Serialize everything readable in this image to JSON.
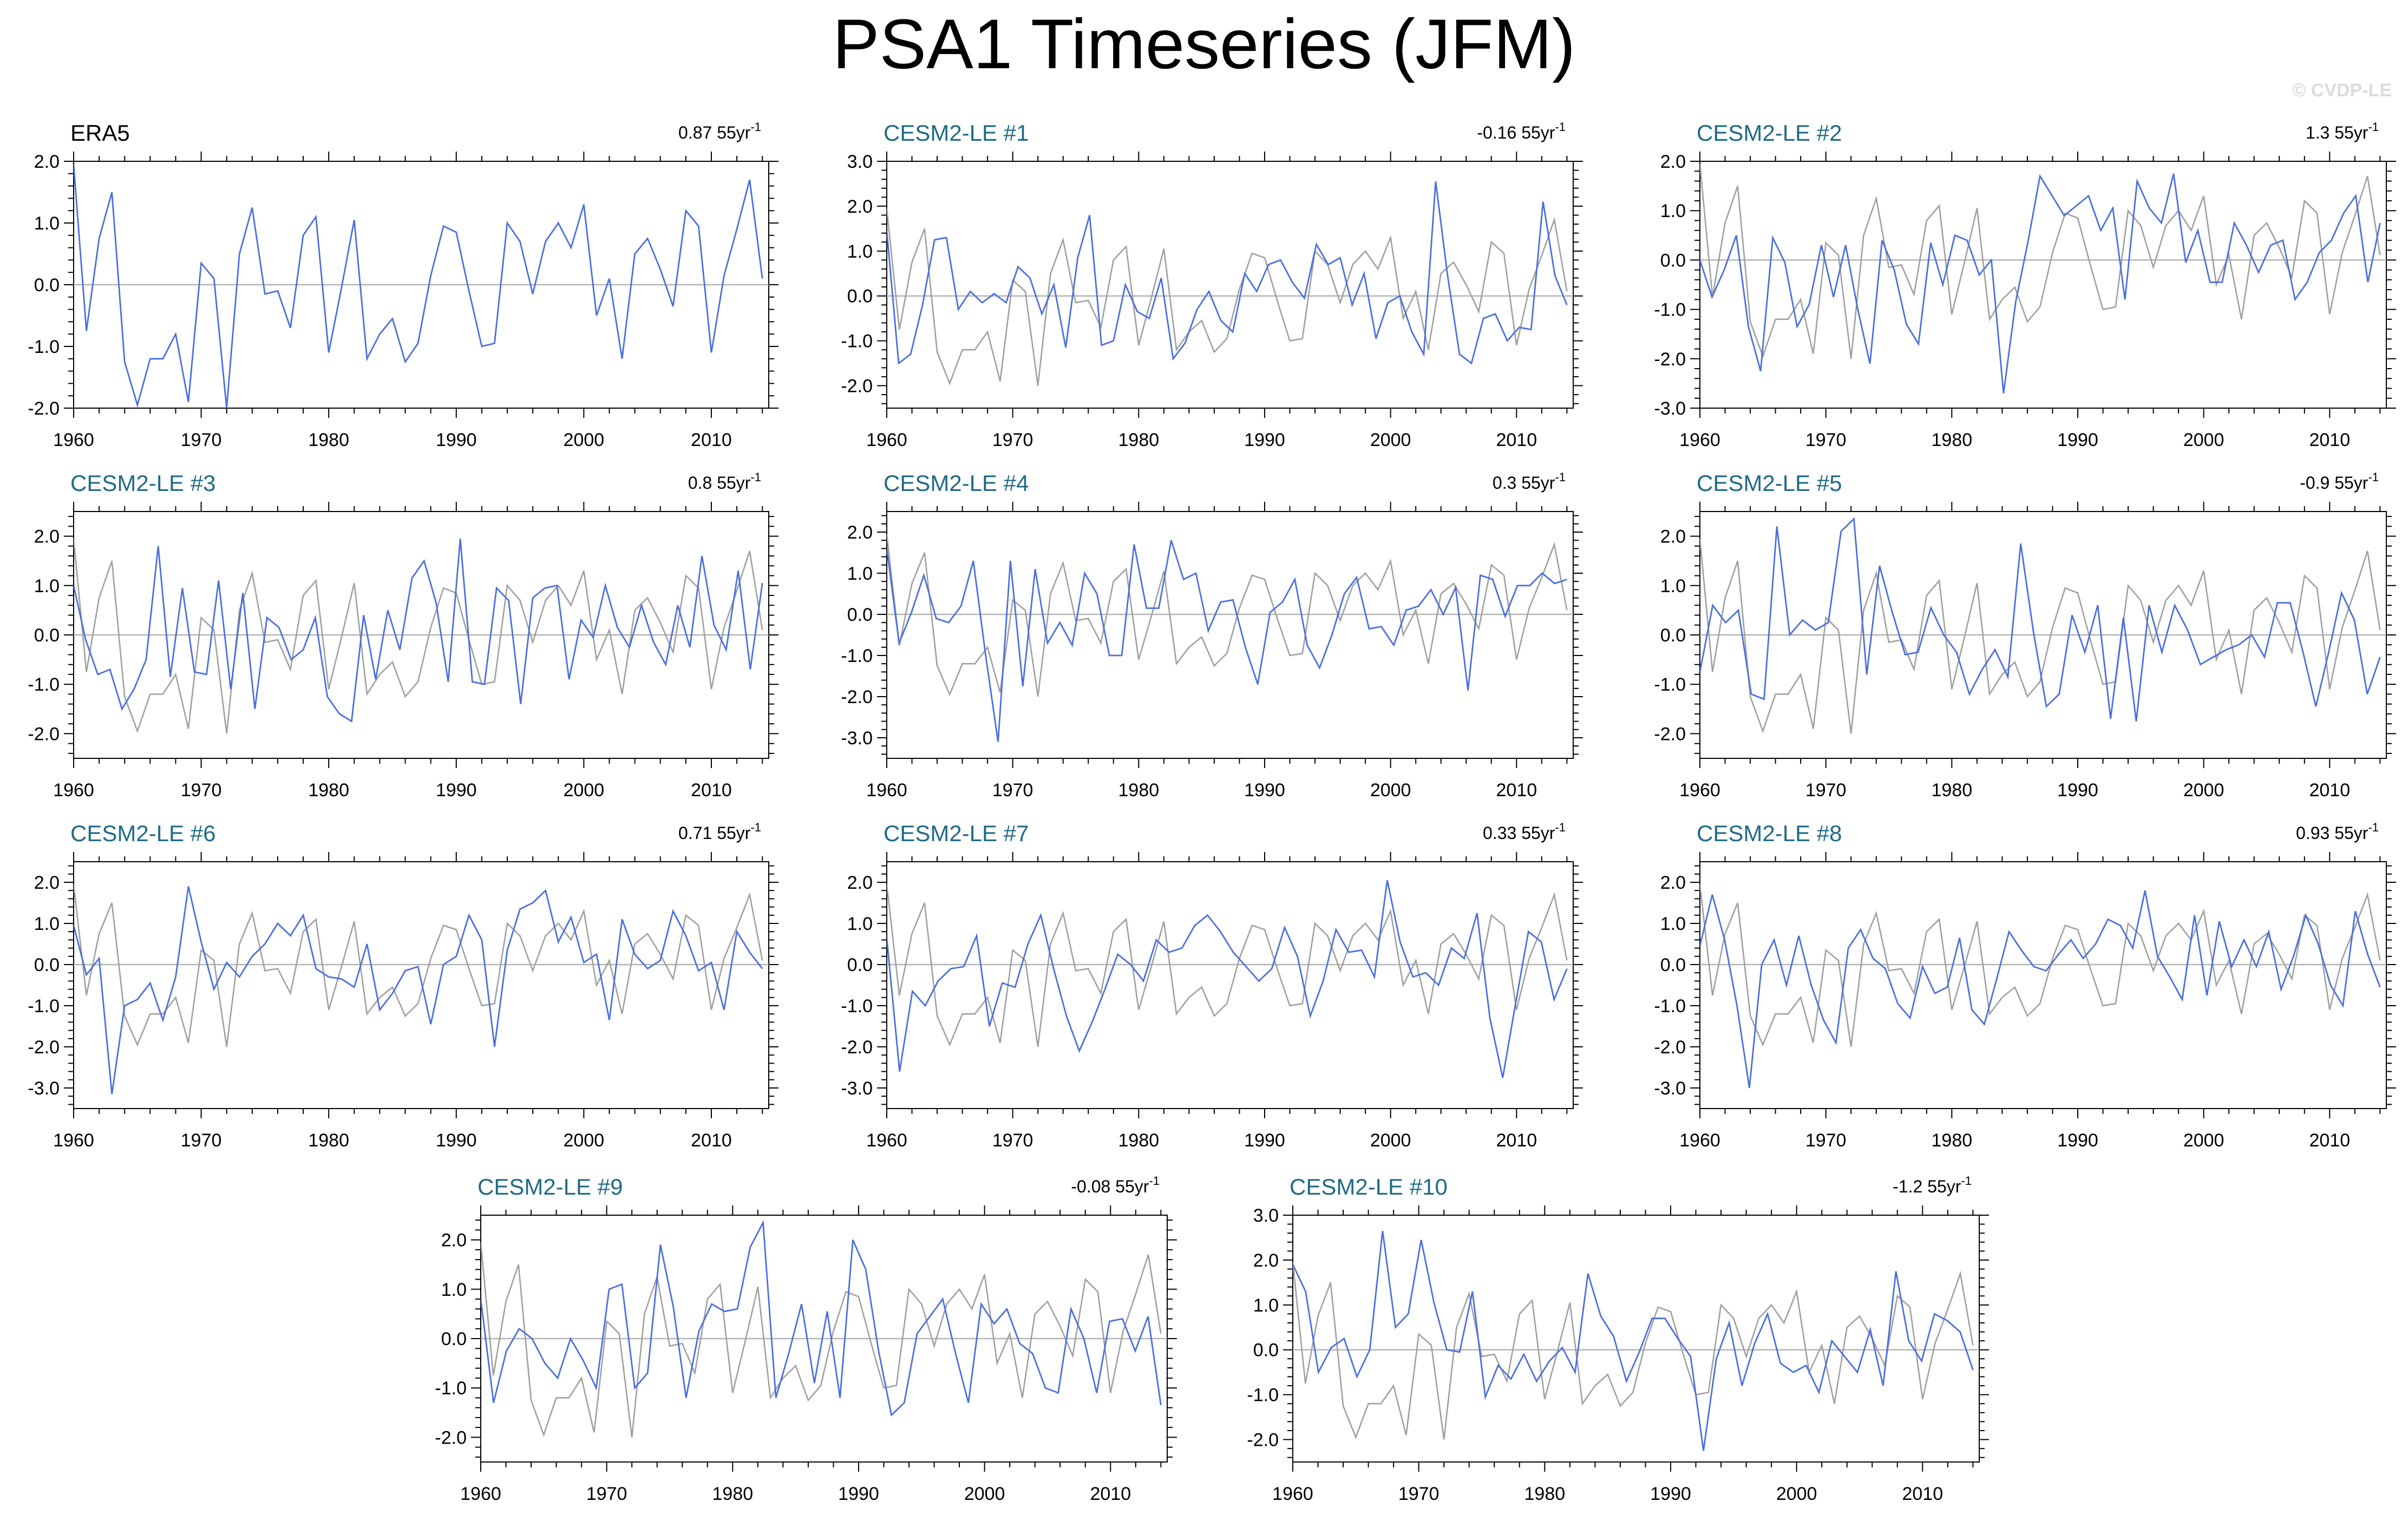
{
  "page": {
    "title": "PSA1 Timeseries (JFM)",
    "copyright": "© CVDP-LE"
  },
  "colors": {
    "model_line": "#4a6fe0",
    "obs_ref_line": "#a0a0a0",
    "zero_line": "#b4b4b4",
    "obs_title": "#000000",
    "model_title": "#1f6a86"
  },
  "chart_data": [
    {
      "type": "line",
      "title": "ERA5",
      "trend": "0.87 55yr",
      "trend_sup": "-1",
      "x_start": 1960,
      "ylim": [
        -2.0,
        2.0
      ],
      "yticks": [
        "2.0",
        "1.0",
        "0.0",
        "-1.0",
        "-2.0"
      ],
      "xticks": [
        "1960",
        "1970",
        "1980",
        "1990",
        "2000",
        "2010"
      ],
      "series": [
        {
          "values": [
            1.95,
            -0.75,
            0.75,
            1.5,
            -1.25,
            -1.95,
            -1.2,
            -1.2,
            -0.8,
            -1.9,
            0.35,
            0.1,
            -2.0,
            0.5,
            1.25,
            -0.15,
            -0.1,
            -0.7,
            0.8,
            1.1,
            -1.1,
            -0.05,
            1.05,
            -1.2,
            -0.8,
            -0.55,
            -1.25,
            -0.95,
            0.15,
            0.95,
            0.85,
            -0.1,
            -1.0,
            -0.95,
            1.0,
            0.7,
            -0.15,
            0.7,
            1.0,
            0.6,
            1.3,
            -0.5,
            0.1,
            -1.2,
            0.5,
            0.75,
            0.25,
            -0.35,
            1.2,
            0.95,
            -1.1,
            0.15,
            0.9,
            1.7,
            0.1
          ]
        }
      ]
    },
    {
      "type": "line",
      "title": "CESM2-LE #1",
      "trend": "-0.16 55yr",
      "trend_sup": "-1",
      "x_start": 1960,
      "ylim": [
        -2.5,
        3.0
      ],
      "yticks": [
        "3.0",
        "2.0",
        "1.0",
        "0.0",
        "-1.0",
        "-2.0"
      ],
      "xticks": [
        "1960",
        "1970",
        "1980",
        "1990",
        "2000",
        "2010"
      ],
      "series": [
        {
          "values": [
            1.45,
            -1.5,
            -1.3,
            -0.2,
            1.25,
            1.3,
            -0.3,
            0.1,
            -0.15,
            0.05,
            -0.15,
            0.65,
            0.4,
            -0.4,
            0.25,
            -1.15,
            0.85,
            1.8,
            -1.1,
            -1.0,
            0.25,
            -0.35,
            -0.5,
            0.4,
            -1.4,
            -1.05,
            -0.3,
            0.1,
            -0.55,
            -0.8,
            0.5,
            0.1,
            0.7,
            0.8,
            0.3,
            -0.05,
            1.15,
            0.7,
            0.85,
            -0.2,
            0.5,
            -0.95,
            -0.15,
            0.0,
            -0.8,
            -1.3,
            2.55,
            0.45,
            -1.3,
            -1.5,
            -0.5,
            -0.4,
            -1.0,
            -0.7,
            -0.75,
            2.1,
            0.45,
            -0.2
          ]
        }
      ]
    },
    {
      "type": "line",
      "title": "CESM2-LE #2",
      "trend": "1.3 55yr",
      "trend_sup": "-1",
      "x_start": 1960,
      "ylim": [
        -3.0,
        2.0
      ],
      "yticks": [
        "2.0",
        "1.0",
        "0.0",
        "-1.0",
        "-2.0",
        "-3.0"
      ],
      "xticks": [
        "1960",
        "1970",
        "1980",
        "1990",
        "2000",
        "2010"
      ],
      "series": [
        {
          "values": [
            0.0,
            -0.75,
            -0.2,
            0.5,
            -1.35,
            -2.25,
            0.45,
            -0.05,
            -1.35,
            -0.9,
            0.3,
            -0.75,
            0.3,
            -1.0,
            -2.1,
            0.4,
            -0.2,
            -1.3,
            -1.7,
            0.35,
            -0.5,
            0.5,
            0.4,
            -0.3,
            0.0,
            -2.7,
            -0.85,
            0.35,
            1.7,
            1.3,
            0.9,
            1.1,
            1.3,
            0.6,
            1.05,
            -0.8,
            1.6,
            1.05,
            0.75,
            1.75,
            -0.05,
            0.6,
            -0.45,
            -0.45,
            0.75,
            0.3,
            -0.25,
            0.3,
            0.4,
            -0.8,
            -0.45,
            0.15,
            0.4,
            0.95,
            1.3,
            -0.45,
            0.75
          ]
        }
      ]
    },
    {
      "type": "line",
      "title": "CESM2-LE #3",
      "trend": "0.8 55yr",
      "trend_sup": "-1",
      "x_start": 1960,
      "ylim": [
        -2.5,
        2.5
      ],
      "yticks": [
        "2.0",
        "1.0",
        "0.0",
        "-1.0",
        "-2.0"
      ],
      "xticks": [
        "1960",
        "1970",
        "1980",
        "1990",
        "2000",
        "2010"
      ],
      "series": [
        {
          "values": [
            1.0,
            -0.1,
            -0.8,
            -0.7,
            -1.5,
            -1.1,
            -0.5,
            1.8,
            -0.85,
            0.95,
            -0.75,
            -0.8,
            1.1,
            -1.1,
            0.85,
            -1.5,
            0.35,
            0.15,
            -0.5,
            -0.3,
            0.35,
            -1.25,
            -1.6,
            -1.75,
            0.4,
            -0.9,
            0.5,
            -0.3,
            1.15,
            1.5,
            0.65,
            -0.95,
            1.95,
            -0.95,
            -1.0,
            0.95,
            0.7,
            -1.4,
            0.75,
            0.95,
            1.0,
            -0.9,
            0.3,
            -0.05,
            1.0,
            0.15,
            -0.25,
            0.6,
            -0.15,
            -0.6,
            0.6,
            -0.25,
            1.6,
            0.2,
            -0.3,
            1.3,
            -0.7,
            1.05
          ]
        }
      ]
    },
    {
      "type": "line",
      "title": "CESM2-LE #4",
      "trend": "0.3 55yr",
      "trend_sup": "-1",
      "x_start": 1960,
      "ylim": [
        -3.5,
        2.5
      ],
      "yticks": [
        "2.0",
        "1.0",
        "0.0",
        "-1.0",
        "-2.0",
        "-3.0"
      ],
      "xticks": [
        "1960",
        "1970",
        "1980",
        "1990",
        "2000",
        "2010"
      ],
      "series": [
        {
          "values": [
            1.6,
            -0.7,
            0.05,
            0.95,
            -0.1,
            -0.2,
            0.2,
            1.3,
            -1.0,
            -3.1,
            1.3,
            -1.75,
            1.1,
            -0.7,
            -0.2,
            -0.75,
            1.0,
            0.5,
            -1.0,
            -1.0,
            1.7,
            0.15,
            0.15,
            1.8,
            0.85,
            1.0,
            -0.4,
            0.3,
            0.35,
            -0.8,
            -1.7,
            0.05,
            0.3,
            0.85,
            -0.75,
            -1.3,
            -0.5,
            0.5,
            0.9,
            -0.35,
            -0.3,
            -0.75,
            0.1,
            0.2,
            0.6,
            0.0,
            0.65,
            -1.85,
            0.95,
            0.85,
            -0.05,
            0.7,
            0.7,
            1.0,
            0.75,
            0.85
          ]
        }
      ]
    },
    {
      "type": "line",
      "title": "CESM2-LE #5",
      "trend": "-0.9 55yr",
      "trend_sup": "-1",
      "x_start": 1960,
      "ylim": [
        -2.5,
        2.5
      ],
      "yticks": [
        "2.0",
        "1.0",
        "0.0",
        "-1.0",
        "-2.0"
      ],
      "xticks": [
        "1960",
        "1970",
        "1980",
        "1990",
        "2000",
        "2010"
      ],
      "series": [
        {
          "values": [
            -0.75,
            0.6,
            0.25,
            0.5,
            -1.2,
            -1.3,
            2.2,
            0.0,
            0.3,
            0.1,
            0.25,
            2.1,
            2.35,
            -0.8,
            1.4,
            0.45,
            -0.4,
            -0.35,
            0.55,
            0.0,
            -0.35,
            -1.2,
            -0.7,
            -0.3,
            -0.85,
            1.85,
            0.05,
            -1.45,
            -1.2,
            0.4,
            -0.35,
            0.6,
            -1.7,
            0.35,
            -1.75,
            0.6,
            -0.35,
            0.6,
            0.1,
            -0.6,
            -0.45,
            -0.3,
            -0.2,
            0.0,
            -0.45,
            0.65,
            0.65,
            -0.35,
            -1.45,
            -0.35,
            0.85,
            0.3,
            -1.2,
            -0.45
          ]
        }
      ]
    },
    {
      "type": "line",
      "title": "CESM2-LE #6",
      "trend": "0.71 55yr",
      "trend_sup": "-1",
      "x_start": 1960,
      "ylim": [
        -3.5,
        2.5
      ],
      "yticks": [
        "2.0",
        "1.0",
        "0.0",
        "-1.0",
        "-2.0",
        "-3.0"
      ],
      "xticks": [
        "1960",
        "1970",
        "1980",
        "1990",
        "2000",
        "2010"
      ],
      "series": [
        {
          "values": [
            0.95,
            -0.25,
            0.15,
            -3.15,
            -1.0,
            -0.85,
            -0.45,
            -1.35,
            -0.3,
            1.9,
            0.55,
            -0.6,
            0.05,
            -0.3,
            0.2,
            0.5,
            1.0,
            0.7,
            1.2,
            -0.1,
            -0.3,
            -0.35,
            -0.55,
            0.5,
            -1.1,
            -0.7,
            -0.15,
            -0.05,
            -1.45,
            0.0,
            0.2,
            1.2,
            0.6,
            -2.0,
            0.35,
            1.35,
            1.5,
            1.8,
            0.55,
            1.15,
            0.05,
            0.25,
            -1.35,
            1.1,
            0.25,
            -0.1,
            0.1,
            1.3,
            0.7,
            -0.15,
            0.05,
            -1.1,
            0.8,
            0.3,
            -0.1
          ]
        }
      ]
    },
    {
      "type": "line",
      "title": "CESM2-LE #7",
      "trend": "0.33 55yr",
      "trend_sup": "-1",
      "x_start": 1960,
      "ylim": [
        -3.5,
        2.5
      ],
      "yticks": [
        "2.0",
        "1.0",
        "0.0",
        "-1.0",
        "-2.0",
        "-3.0"
      ],
      "xticks": [
        "1960",
        "1970",
        "1980",
        "1990",
        "2000",
        "2010"
      ],
      "series": [
        {
          "values": [
            0.65,
            -2.6,
            -0.65,
            -1.0,
            -0.4,
            -0.1,
            -0.05,
            0.7,
            -1.5,
            -0.45,
            -0.55,
            0.5,
            1.2,
            -0.1,
            -1.25,
            -2.1,
            -1.4,
            -0.6,
            0.25,
            0.0,
            -0.4,
            0.6,
            0.3,
            0.4,
            0.95,
            1.2,
            0.8,
            0.3,
            -0.05,
            -0.4,
            -0.1,
            0.9,
            0.2,
            -1.25,
            -0.4,
            0.85,
            0.3,
            0.35,
            -0.3,
            2.05,
            0.55,
            -0.3,
            -0.2,
            -0.5,
            0.4,
            0.15,
            1.25,
            -1.3,
            -2.75,
            -0.95,
            0.8,
            0.55,
            -0.85,
            -0.1
          ]
        }
      ]
    },
    {
      "type": "line",
      "title": "CESM2-LE #8",
      "trend": "0.93 55yr",
      "trend_sup": "-1",
      "x_start": 1960,
      "ylim": [
        -3.5,
        2.5
      ],
      "yticks": [
        "2.0",
        "1.0",
        "0.0",
        "-1.0",
        "-2.0",
        "-3.0"
      ],
      "xticks": [
        "1960",
        "1970",
        "1980",
        "1990",
        "2000",
        "2010"
      ],
      "series": [
        {
          "values": [
            0.45,
            1.7,
            0.6,
            -1.0,
            -3.0,
            0.0,
            0.6,
            -0.5,
            0.7,
            -0.5,
            -1.35,
            -1.9,
            0.4,
            0.85,
            0.15,
            -0.1,
            -0.95,
            -1.3,
            -0.05,
            -0.7,
            -0.55,
            0.65,
            -1.1,
            -1.45,
            -0.35,
            0.8,
            0.35,
            -0.05,
            -0.15,
            0.25,
            0.6,
            0.15,
            0.5,
            1.1,
            0.95,
            0.4,
            1.8,
            0.2,
            -0.3,
            -0.85,
            1.2,
            -0.75,
            1.05,
            -0.05,
            0.6,
            -0.05,
            0.8,
            -0.6,
            0.2,
            1.2,
            0.5,
            -0.5,
            -1.0,
            1.3,
            0.25,
            -0.55
          ]
        }
      ]
    },
    {
      "type": "line",
      "title": "CESM2-LE #9",
      "trend": "-0.08 55yr",
      "trend_sup": "-1",
      "x_start": 1960,
      "ylim": [
        -2.5,
        2.5
      ],
      "yticks": [
        "2.0",
        "1.0",
        "0.0",
        "-1.0",
        "-2.0"
      ],
      "xticks": [
        "1960",
        "1970",
        "1980",
        "1990",
        "2000",
        "2010"
      ],
      "series": [
        {
          "values": [
            0.8,
            -1.3,
            -0.25,
            0.2,
            0.0,
            -0.5,
            -0.8,
            0.0,
            -0.45,
            -1.0,
            1.0,
            1.1,
            -1.0,
            -0.7,
            1.9,
            0.65,
            -1.2,
            0.15,
            0.7,
            0.55,
            0.6,
            1.85,
            2.35,
            -1.2,
            -0.3,
            0.7,
            -0.9,
            0.55,
            -1.2,
            2.0,
            1.4,
            -0.25,
            -1.55,
            -1.3,
            0.1,
            0.45,
            0.8,
            -0.3,
            -1.3,
            0.7,
            0.3,
            0.6,
            -0.1,
            -0.3,
            -1.0,
            -1.1,
            0.6,
            0.0,
            -1.1,
            0.35,
            0.4,
            -0.25,
            0.45,
            -1.35
          ]
        }
      ]
    },
    {
      "type": "line",
      "title": "CESM2-LE #10",
      "trend": "-1.2 55yr",
      "trend_sup": "-1",
      "x_start": 1960,
      "ylim": [
        -2.5,
        3.0
      ],
      "yticks": [
        "3.0",
        "2.0",
        "1.0",
        "0.0",
        "-1.0",
        "-2.0"
      ],
      "xticks": [
        "1960",
        "1970",
        "1980",
        "1990",
        "2000",
        "2010"
      ],
      "series": [
        {
          "values": [
            1.9,
            1.3,
            -0.5,
            0.05,
            0.25,
            -0.6,
            0.0,
            2.65,
            0.5,
            0.8,
            2.45,
            1.05,
            0.0,
            -0.05,
            1.3,
            -1.05,
            -0.35,
            -0.65,
            -0.1,
            -0.7,
            -0.25,
            0.05,
            -0.5,
            1.7,
            0.75,
            0.3,
            -0.7,
            -0.05,
            0.7,
            0.7,
            0.25,
            -0.15,
            -2.25,
            -0.2,
            0.6,
            -0.8,
            0.15,
            0.8,
            -0.3,
            -0.5,
            -0.35,
            -0.95,
            0.2,
            -0.15,
            -0.5,
            0.45,
            -0.8,
            1.75,
            0.2,
            -0.25,
            0.8,
            0.65,
            0.4,
            -0.45
          ]
        }
      ]
    }
  ],
  "reference_series": {
    "description_name": "ERA5",
    "values": [
      1.95,
      -0.75,
      0.75,
      1.5,
      -1.25,
      -1.95,
      -1.2,
      -1.2,
      -0.8,
      -1.9,
      0.35,
      0.1,
      -2.0,
      0.5,
      1.25,
      -0.15,
      -0.1,
      -0.7,
      0.8,
      1.1,
      -1.1,
      -0.05,
      1.05,
      -1.2,
      -0.8,
      -0.55,
      -1.25,
      -0.95,
      0.15,
      0.95,
      0.85,
      -0.1,
      -1.0,
      -0.95,
      1.0,
      0.7,
      -0.15,
      0.7,
      1.0,
      0.6,
      1.3,
      -0.5,
      0.1,
      -1.2,
      0.5,
      0.75,
      0.25,
      -0.35,
      1.2,
      0.95,
      -1.1,
      0.15,
      0.9,
      1.7,
      0.1
    ]
  }
}
